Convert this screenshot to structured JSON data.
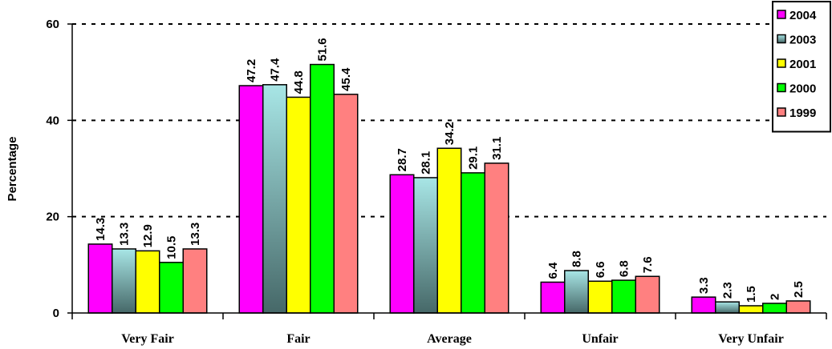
{
  "chart_data": {
    "type": "bar",
    "ylabel": "Percentage",
    "xlabel": "",
    "ylim": [
      0,
      60
    ],
    "yticks": [
      0,
      20,
      40,
      60
    ],
    "grid": "dashed horizontal",
    "legend_position": "top-right",
    "categories": [
      "Very Fair",
      "Fair",
      "Average",
      "Unfair",
      "Very Unfair"
    ],
    "series": [
      {
        "name": "2004",
        "color": "#ff00ff",
        "values": [
          14.3,
          47.2,
          28.7,
          6.4,
          3.3
        ],
        "labels": [
          "14.3",
          "47.2",
          "28.7",
          "6.4",
          "3.3"
        ]
      },
      {
        "name": "2003",
        "color": "#9fdcdc",
        "gradient_to": "#466868",
        "values": [
          13.3,
          47.4,
          28.1,
          8.8,
          2.3
        ],
        "labels": [
          "13.3",
          "47.4",
          "28.1",
          "8.8",
          "2.3"
        ]
      },
      {
        "name": "2001",
        "color": "#ffff00",
        "values": [
          12.9,
          44.8,
          34.2,
          6.6,
          1.5
        ],
        "labels": [
          "12.9",
          "44.8",
          "34.2",
          "6.6",
          "1.5"
        ]
      },
      {
        "name": "2000",
        "color": "#00ff00",
        "values": [
          10.5,
          51.6,
          29.1,
          6.8,
          2
        ],
        "labels": [
          "10.5",
          "51.6",
          "29.1",
          "6.8",
          "2"
        ]
      },
      {
        "name": "1999",
        "color": "#ff8080",
        "values": [
          13.3,
          45.4,
          31.1,
          7.6,
          2.5
        ],
        "labels": [
          "13.3",
          "45.4",
          "31.1",
          "7.6",
          "2.5"
        ]
      }
    ]
  }
}
